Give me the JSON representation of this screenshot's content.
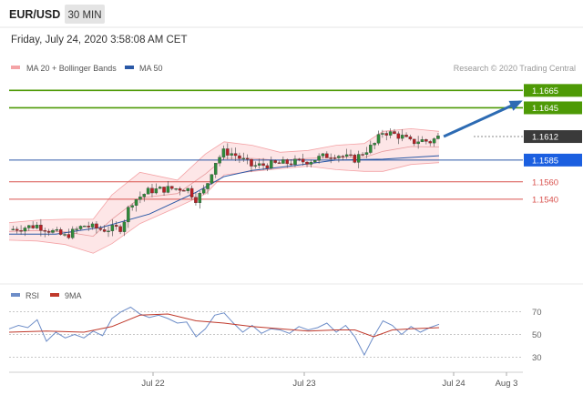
{
  "header": {
    "symbol": "EUR/USD",
    "timeframe": "30 MIN",
    "datetime": "Friday, July 24, 2020 3:58:08 AM CET",
    "credit": "Research © 2020 Trading Central"
  },
  "colors": {
    "bollinger": "#f4a3a6",
    "bollinger_fill": "#fde3e4",
    "ma50": "#2a58a6",
    "resistance": "#4e9a06",
    "support": "#d9534f",
    "pivot": "#1b5fe0",
    "current": "#3a3a3a",
    "arrow": "#2d6bb3",
    "bull": "#2e8b3a",
    "bear": "#b81f24",
    "rsi": "#6d8dc8",
    "rsi_ma": "#c0392b"
  },
  "chart_data": [
    {
      "type": "candlestick",
      "title": "",
      "legend": [
        {
          "name": "MA 20 + Bollinger Bands",
          "color": "#f4a3a6"
        },
        {
          "name": "MA 50",
          "color": "#2a58a6"
        }
      ],
      "legend_placement": "top-left",
      "ylim": [
        1.145,
        1.168
      ],
      "x_ticks": [
        "Jul 22",
        "Jul 23",
        "Jul 24",
        "Aug 3"
      ],
      "levels": [
        {
          "value": 1.1665,
          "label": "1.1665",
          "kind": "resistance"
        },
        {
          "value": 1.1645,
          "label": "1.1645",
          "kind": "resistance"
        },
        {
          "value": 1.1612,
          "label": "1.1612",
          "kind": "current"
        },
        {
          "value": 1.1585,
          "label": "1.1585",
          "kind": "pivot"
        },
        {
          "value": 1.156,
          "label": "1.1560",
          "kind": "support"
        },
        {
          "value": 1.154,
          "label": "1.1540",
          "kind": "support"
        }
      ],
      "close_path": [
        [
          0,
          1.1505
        ],
        [
          6,
          1.151
        ],
        [
          12,
          1.1497
        ],
        [
          16,
          1.151
        ],
        [
          20,
          1.1505
        ],
        [
          24,
          1.1507
        ],
        [
          26,
          1.1536
        ],
        [
          30,
          1.155
        ],
        [
          34,
          1.1552
        ],
        [
          38,
          1.1553
        ],
        [
          40,
          1.154
        ],
        [
          42,
          1.1552
        ],
        [
          44,
          1.1582
        ],
        [
          46,
          1.1595
        ],
        [
          48,
          1.1592
        ],
        [
          52,
          1.1578
        ],
        [
          56,
          1.158
        ],
        [
          60,
          1.1582
        ],
        [
          64,
          1.1584
        ],
        [
          68,
          1.159
        ],
        [
          70,
          1.1592
        ],
        [
          72,
          1.1588
        ],
        [
          74,
          1.1586
        ],
        [
          76,
          1.1595
        ],
        [
          78,
          1.1602
        ],
        [
          80,
          1.1618
        ],
        [
          82,
          1.1615
        ],
        [
          84,
          1.1612
        ],
        [
          86,
          1.1605
        ],
        [
          88,
          1.1608
        ],
        [
          90,
          1.1606
        ],
        [
          92,
          1.1612
        ]
      ],
      "ma50": [
        [
          0,
          1.15
        ],
        [
          10,
          1.15
        ],
        [
          20,
          1.1508
        ],
        [
          30,
          1.1523
        ],
        [
          40,
          1.1548
        ],
        [
          46,
          1.1566
        ],
        [
          52,
          1.1573
        ],
        [
          60,
          1.1578
        ],
        [
          70,
          1.1585
        ],
        [
          80,
          1.1586
        ],
        [
          92,
          1.159
        ]
      ],
      "bollinger_upper": [
        [
          0,
          1.1513
        ],
        [
          6,
          1.1516
        ],
        [
          12,
          1.1517
        ],
        [
          18,
          1.1517
        ],
        [
          22,
          1.1545
        ],
        [
          28,
          1.1571
        ],
        [
          36,
          1.1562
        ],
        [
          42,
          1.1592
        ],
        [
          46,
          1.1606
        ],
        [
          52,
          1.1602
        ],
        [
          58,
          1.1594
        ],
        [
          64,
          1.1596
        ],
        [
          70,
          1.1602
        ],
        [
          76,
          1.1604
        ],
        [
          80,
          1.1618
        ],
        [
          86,
          1.1621
        ],
        [
          92,
          1.1618
        ]
      ],
      "bollinger_lower": [
        [
          0,
          1.1493
        ],
        [
          6,
          1.1492
        ],
        [
          12,
          1.1488
        ],
        [
          18,
          1.1478
        ],
        [
          22,
          1.1489
        ],
        [
          28,
          1.1512
        ],
        [
          36,
          1.1531
        ],
        [
          42,
          1.1546
        ],
        [
          46,
          1.1568
        ],
        [
          52,
          1.1572
        ],
        [
          58,
          1.1575
        ],
        [
          64,
          1.1578
        ],
        [
          70,
          1.1574
        ],
        [
          76,
          1.1572
        ],
        [
          80,
          1.1572
        ],
        [
          86,
          1.158
        ],
        [
          92,
          1.1582
        ]
      ],
      "projection": {
        "from": [
          93,
          1.1612
        ],
        "to": [
          100,
          1.1652
        ]
      }
    },
    {
      "type": "line",
      "title": "",
      "legend": [
        {
          "name": "RSI",
          "color": "#6d8dc8"
        },
        {
          "name": "9MA",
          "color": "#c0392b"
        }
      ],
      "legend_placement": "top-left",
      "ylim": [
        20,
        80
      ],
      "y_ticks": [
        70,
        50,
        30
      ],
      "series": [
        {
          "name": "RSI",
          "values": [
            [
              0,
              55
            ],
            [
              2,
              58
            ],
            [
              4,
              56
            ],
            [
              6,
              63
            ],
            [
              8,
              44
            ],
            [
              10,
              52
            ],
            [
              12,
              47
            ],
            [
              14,
              50
            ],
            [
              16,
              47
            ],
            [
              18,
              53
            ],
            [
              20,
              49
            ],
            [
              22,
              64
            ],
            [
              24,
              70
            ],
            [
              26,
              74
            ],
            [
              28,
              68
            ],
            [
              30,
              65
            ],
            [
              32,
              67
            ],
            [
              34,
              64
            ],
            [
              36,
              60
            ],
            [
              38,
              61
            ],
            [
              40,
              48
            ],
            [
              42,
              55
            ],
            [
              44,
              67
            ],
            [
              46,
              69
            ],
            [
              48,
              60
            ],
            [
              50,
              52
            ],
            [
              52,
              58
            ],
            [
              54,
              51
            ],
            [
              56,
              55
            ],
            [
              58,
              54
            ],
            [
              60,
              51
            ],
            [
              62,
              57
            ],
            [
              64,
              54
            ],
            [
              66,
              56
            ],
            [
              68,
              60
            ],
            [
              70,
              52
            ],
            [
              72,
              58
            ],
            [
              74,
              48
            ],
            [
              76,
              32
            ],
            [
              78,
              48
            ],
            [
              80,
              62
            ],
            [
              82,
              58
            ],
            [
              84,
              50
            ],
            [
              86,
              57
            ],
            [
              88,
              52
            ],
            [
              90,
              56
            ],
            [
              92,
              59
            ]
          ]
        },
        {
          "name": "9MA",
          "values": [
            [
              0,
              52
            ],
            [
              8,
              53
            ],
            [
              16,
              52
            ],
            [
              22,
              57
            ],
            [
              28,
              67
            ],
            [
              34,
              68
            ],
            [
              40,
              62
            ],
            [
              46,
              60
            ],
            [
              52,
              57
            ],
            [
              58,
              55
            ],
            [
              64,
              53
            ],
            [
              70,
              54
            ],
            [
              74,
              54
            ],
            [
              78,
              48
            ],
            [
              82,
              54
            ],
            [
              86,
              55
            ],
            [
              92,
              56
            ]
          ]
        }
      ]
    }
  ]
}
